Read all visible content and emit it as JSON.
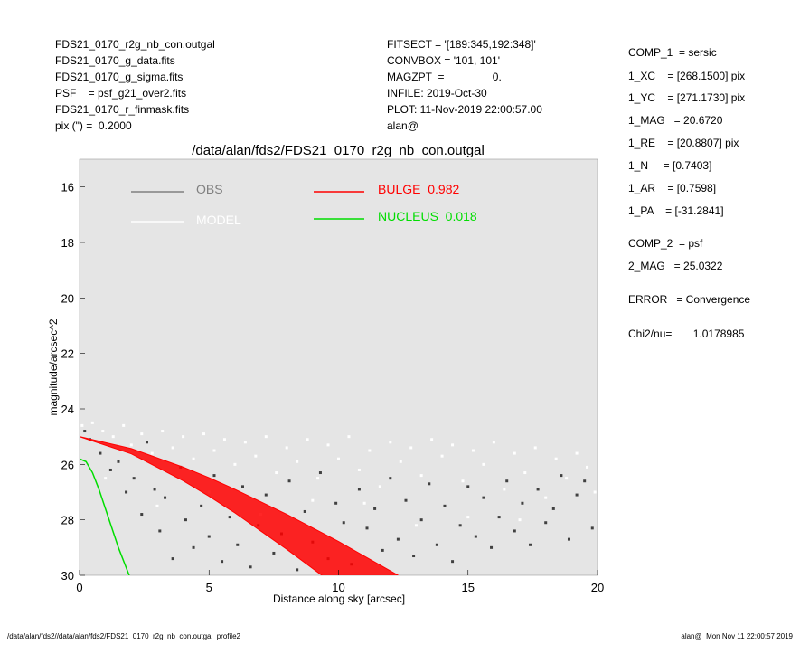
{
  "header_left": [
    "FDS21_0170_r2g_nb_con.outgal",
    "FDS21_0170_g_data.fits",
    "FDS21_0170_g_sigma.fits",
    "PSF    = psf_g21_over2.fits",
    "FDS21_0170_r_finmask.fits",
    "pix (\") =  0.2000"
  ],
  "header_mid": [
    "FITSECT = '[189:345,192:348]'",
    "CONVBOX = '101, 101'",
    "MAGZPT  =                0.",
    "INFILE: 2019-Oct-30",
    "PLOT: 11-Nov-2019 22:00:57.00",
    "alan@"
  ],
  "params": [
    "COMP_1  = sersic",
    "1_XC    = [268.1500] pix",
    "1_YC    = [271.1730] pix",
    "1_MAG   = 20.6720",
    "1_RE    = [20.8807] pix",
    "1_N     = [0.7403]",
    "1_AR    = [0.7598]",
    "1_PA    = [-31.2841]",
    "COMP_2  = psf",
    "2_MAG   = 25.0322",
    "ERROR   = Convergence",
    "Chi2/nu=       1.0178985"
  ],
  "footer": {
    "left": "/data/alan/fds2//data/alan/fds2/FDS21_0170_r2g_nb_con.outgal_profile2",
    "right": "alan@  Mon Nov 11 22:00:57 2019"
  },
  "chart_data": {
    "type": "scatter",
    "title": "/data/alan/fds2/FDS21_0170_r2g_nb_con.outgal",
    "xlabel": "Distance along sky [arcsec]",
    "ylabel": "magnitude/arcsec^2",
    "xlim": [
      0,
      20
    ],
    "ylim": [
      30,
      15
    ],
    "y_inverted": true,
    "xticks": [
      "0",
      "5",
      "10",
      "15",
      "20"
    ],
    "yticks": [
      "16",
      "18",
      "20",
      "22",
      "24",
      "26",
      "28",
      "30"
    ],
    "grid": false,
    "background": "#e5e5e5",
    "legend": [
      {
        "label": "OBS",
        "color": "#808080"
      },
      {
        "label": "MODEL",
        "color": "#ffffff"
      },
      {
        "label": "BULGE  0.982",
        "color": "#ff0000"
      },
      {
        "label": "NUCLEUS  0.018",
        "color": "#00dd00"
      }
    ],
    "series": [
      {
        "name": "OBS",
        "kind": "points",
        "color": "#404040",
        "points": [
          [
            0.2,
            24.8
          ],
          [
            0.4,
            25.1
          ],
          [
            0.8,
            25.6
          ],
          [
            1.2,
            26.2
          ],
          [
            1.5,
            25.9
          ],
          [
            1.8,
            27.0
          ],
          [
            2.1,
            26.5
          ],
          [
            2.4,
            27.8
          ],
          [
            2.6,
            25.2
          ],
          [
            2.9,
            26.9
          ],
          [
            3.1,
            28.4
          ],
          [
            3.3,
            27.2
          ],
          [
            3.6,
            29.4
          ],
          [
            3.9,
            26.1
          ],
          [
            4.1,
            28.0
          ],
          [
            4.4,
            29.0
          ],
          [
            4.7,
            27.5
          ],
          [
            5.0,
            28.6
          ],
          [
            5.2,
            26.4
          ],
          [
            5.5,
            29.5
          ],
          [
            5.8,
            27.9
          ],
          [
            6.1,
            28.9
          ],
          [
            6.3,
            26.8
          ],
          [
            6.6,
            29.7
          ],
          [
            6.9,
            28.2
          ],
          [
            7.2,
            27.1
          ],
          [
            7.5,
            29.2
          ],
          [
            7.8,
            28.5
          ],
          [
            8.1,
            26.6
          ],
          [
            8.4,
            29.8
          ],
          [
            8.7,
            27.7
          ],
          [
            9.0,
            28.8
          ],
          [
            9.3,
            26.3
          ],
          [
            9.6,
            29.4
          ],
          [
            9.9,
            27.4
          ],
          [
            10.2,
            28.1
          ],
          [
            10.5,
            29.6
          ],
          [
            10.8,
            26.9
          ],
          [
            11.1,
            28.3
          ],
          [
            11.4,
            27.6
          ],
          [
            11.7,
            29.1
          ],
          [
            12.0,
            26.5
          ],
          [
            12.3,
            28.7
          ],
          [
            12.6,
            27.3
          ],
          [
            12.9,
            29.3
          ],
          [
            13.2,
            28.0
          ],
          [
            13.5,
            26.7
          ],
          [
            13.8,
            28.9
          ],
          [
            14.1,
            27.5
          ],
          [
            14.4,
            29.5
          ],
          [
            14.7,
            28.2
          ],
          [
            15.0,
            26.8
          ],
          [
            15.3,
            28.6
          ],
          [
            15.6,
            27.2
          ],
          [
            15.9,
            29.0
          ],
          [
            16.2,
            27.9
          ],
          [
            16.5,
            26.6
          ],
          [
            16.8,
            28.4
          ],
          [
            17.1,
            27.4
          ],
          [
            17.4,
            28.9
          ],
          [
            17.7,
            26.9
          ],
          [
            18.0,
            28.1
          ],
          [
            18.3,
            27.6
          ],
          [
            18.6,
            26.4
          ],
          [
            18.9,
            28.7
          ],
          [
            19.2,
            27.1
          ],
          [
            19.5,
            26.6
          ],
          [
            19.8,
            28.3
          ]
        ]
      },
      {
        "name": "MODEL",
        "kind": "points",
        "color": "#ffffff",
        "points": [
          [
            0.1,
            24.6
          ],
          [
            0.5,
            24.5
          ],
          [
            0.9,
            24.8
          ],
          [
            1.3,
            25.0
          ],
          [
            1.7,
            24.6
          ],
          [
            2.0,
            25.3
          ],
          [
            2.4,
            24.9
          ],
          [
            2.8,
            25.6
          ],
          [
            3.2,
            24.8
          ],
          [
            3.6,
            25.4
          ],
          [
            4.0,
            25.0
          ],
          [
            4.4,
            25.8
          ],
          [
            4.8,
            24.9
          ],
          [
            5.2,
            25.5
          ],
          [
            5.6,
            25.1
          ],
          [
            6.0,
            26.0
          ],
          [
            6.4,
            25.2
          ],
          [
            6.8,
            25.7
          ],
          [
            7.2,
            25.0
          ],
          [
            7.6,
            26.3
          ],
          [
            8.0,
            25.4
          ],
          [
            8.4,
            25.9
          ],
          [
            8.8,
            25.1
          ],
          [
            9.2,
            26.5
          ],
          [
            9.6,
            25.3
          ],
          [
            10.0,
            25.8
          ],
          [
            10.4,
            25.0
          ],
          [
            10.8,
            26.2
          ],
          [
            11.2,
            25.5
          ],
          [
            11.6,
            26.8
          ],
          [
            12.0,
            25.2
          ],
          [
            12.4,
            25.9
          ],
          [
            12.8,
            25.4
          ],
          [
            13.2,
            26.4
          ],
          [
            13.6,
            25.1
          ],
          [
            14.0,
            25.7
          ],
          [
            14.4,
            25.3
          ],
          [
            14.8,
            26.6
          ],
          [
            15.2,
            25.5
          ],
          [
            15.6,
            26.0
          ],
          [
            16.0,
            25.2
          ],
          [
            16.4,
            26.9
          ],
          [
            16.8,
            25.6
          ],
          [
            17.2,
            26.3
          ],
          [
            17.6,
            25.4
          ],
          [
            18.0,
            27.2
          ],
          [
            18.4,
            25.8
          ],
          [
            18.8,
            26.5
          ],
          [
            19.2,
            25.6
          ],
          [
            19.6,
            26.1
          ],
          [
            19.9,
            27.0
          ],
          [
            3.0,
            27.5
          ],
          [
            7.0,
            27.8
          ],
          [
            11.0,
            27.4
          ],
          [
            15.0,
            27.9
          ],
          [
            1.0,
            26.5
          ],
          [
            5.0,
            27.0
          ],
          [
            9.0,
            27.3
          ],
          [
            13.0,
            28.2
          ],
          [
            17.0,
            28.0
          ]
        ]
      },
      {
        "name": "BULGE  0.982",
        "kind": "band",
        "color": "#ff0000",
        "upper": [
          [
            0,
            25.0
          ],
          [
            2,
            25.43
          ],
          [
            4,
            26.1
          ],
          [
            5,
            26.48
          ],
          [
            6,
            26.9
          ],
          [
            8,
            27.8
          ],
          [
            10,
            28.78
          ],
          [
            12,
            29.84
          ],
          [
            12.3,
            30.0
          ]
        ],
        "lower": [
          [
            0,
            25.0
          ],
          [
            2,
            25.62
          ],
          [
            4,
            26.59
          ],
          [
            5,
            27.15
          ],
          [
            6,
            27.75
          ],
          [
            8,
            29.06
          ],
          [
            9.5,
            30.1
          ]
        ]
      },
      {
        "name": "NUCLEUS  0.018",
        "kind": "line",
        "color": "#00dd00",
        "points": [
          [
            0,
            25.8
          ],
          [
            0.25,
            25.9
          ],
          [
            0.5,
            26.3
          ],
          [
            0.75,
            26.9
          ],
          [
            1.0,
            27.6
          ],
          [
            1.25,
            28.3
          ],
          [
            1.5,
            29.0
          ],
          [
            1.75,
            29.6
          ],
          [
            2.0,
            30.2
          ]
        ]
      }
    ]
  }
}
